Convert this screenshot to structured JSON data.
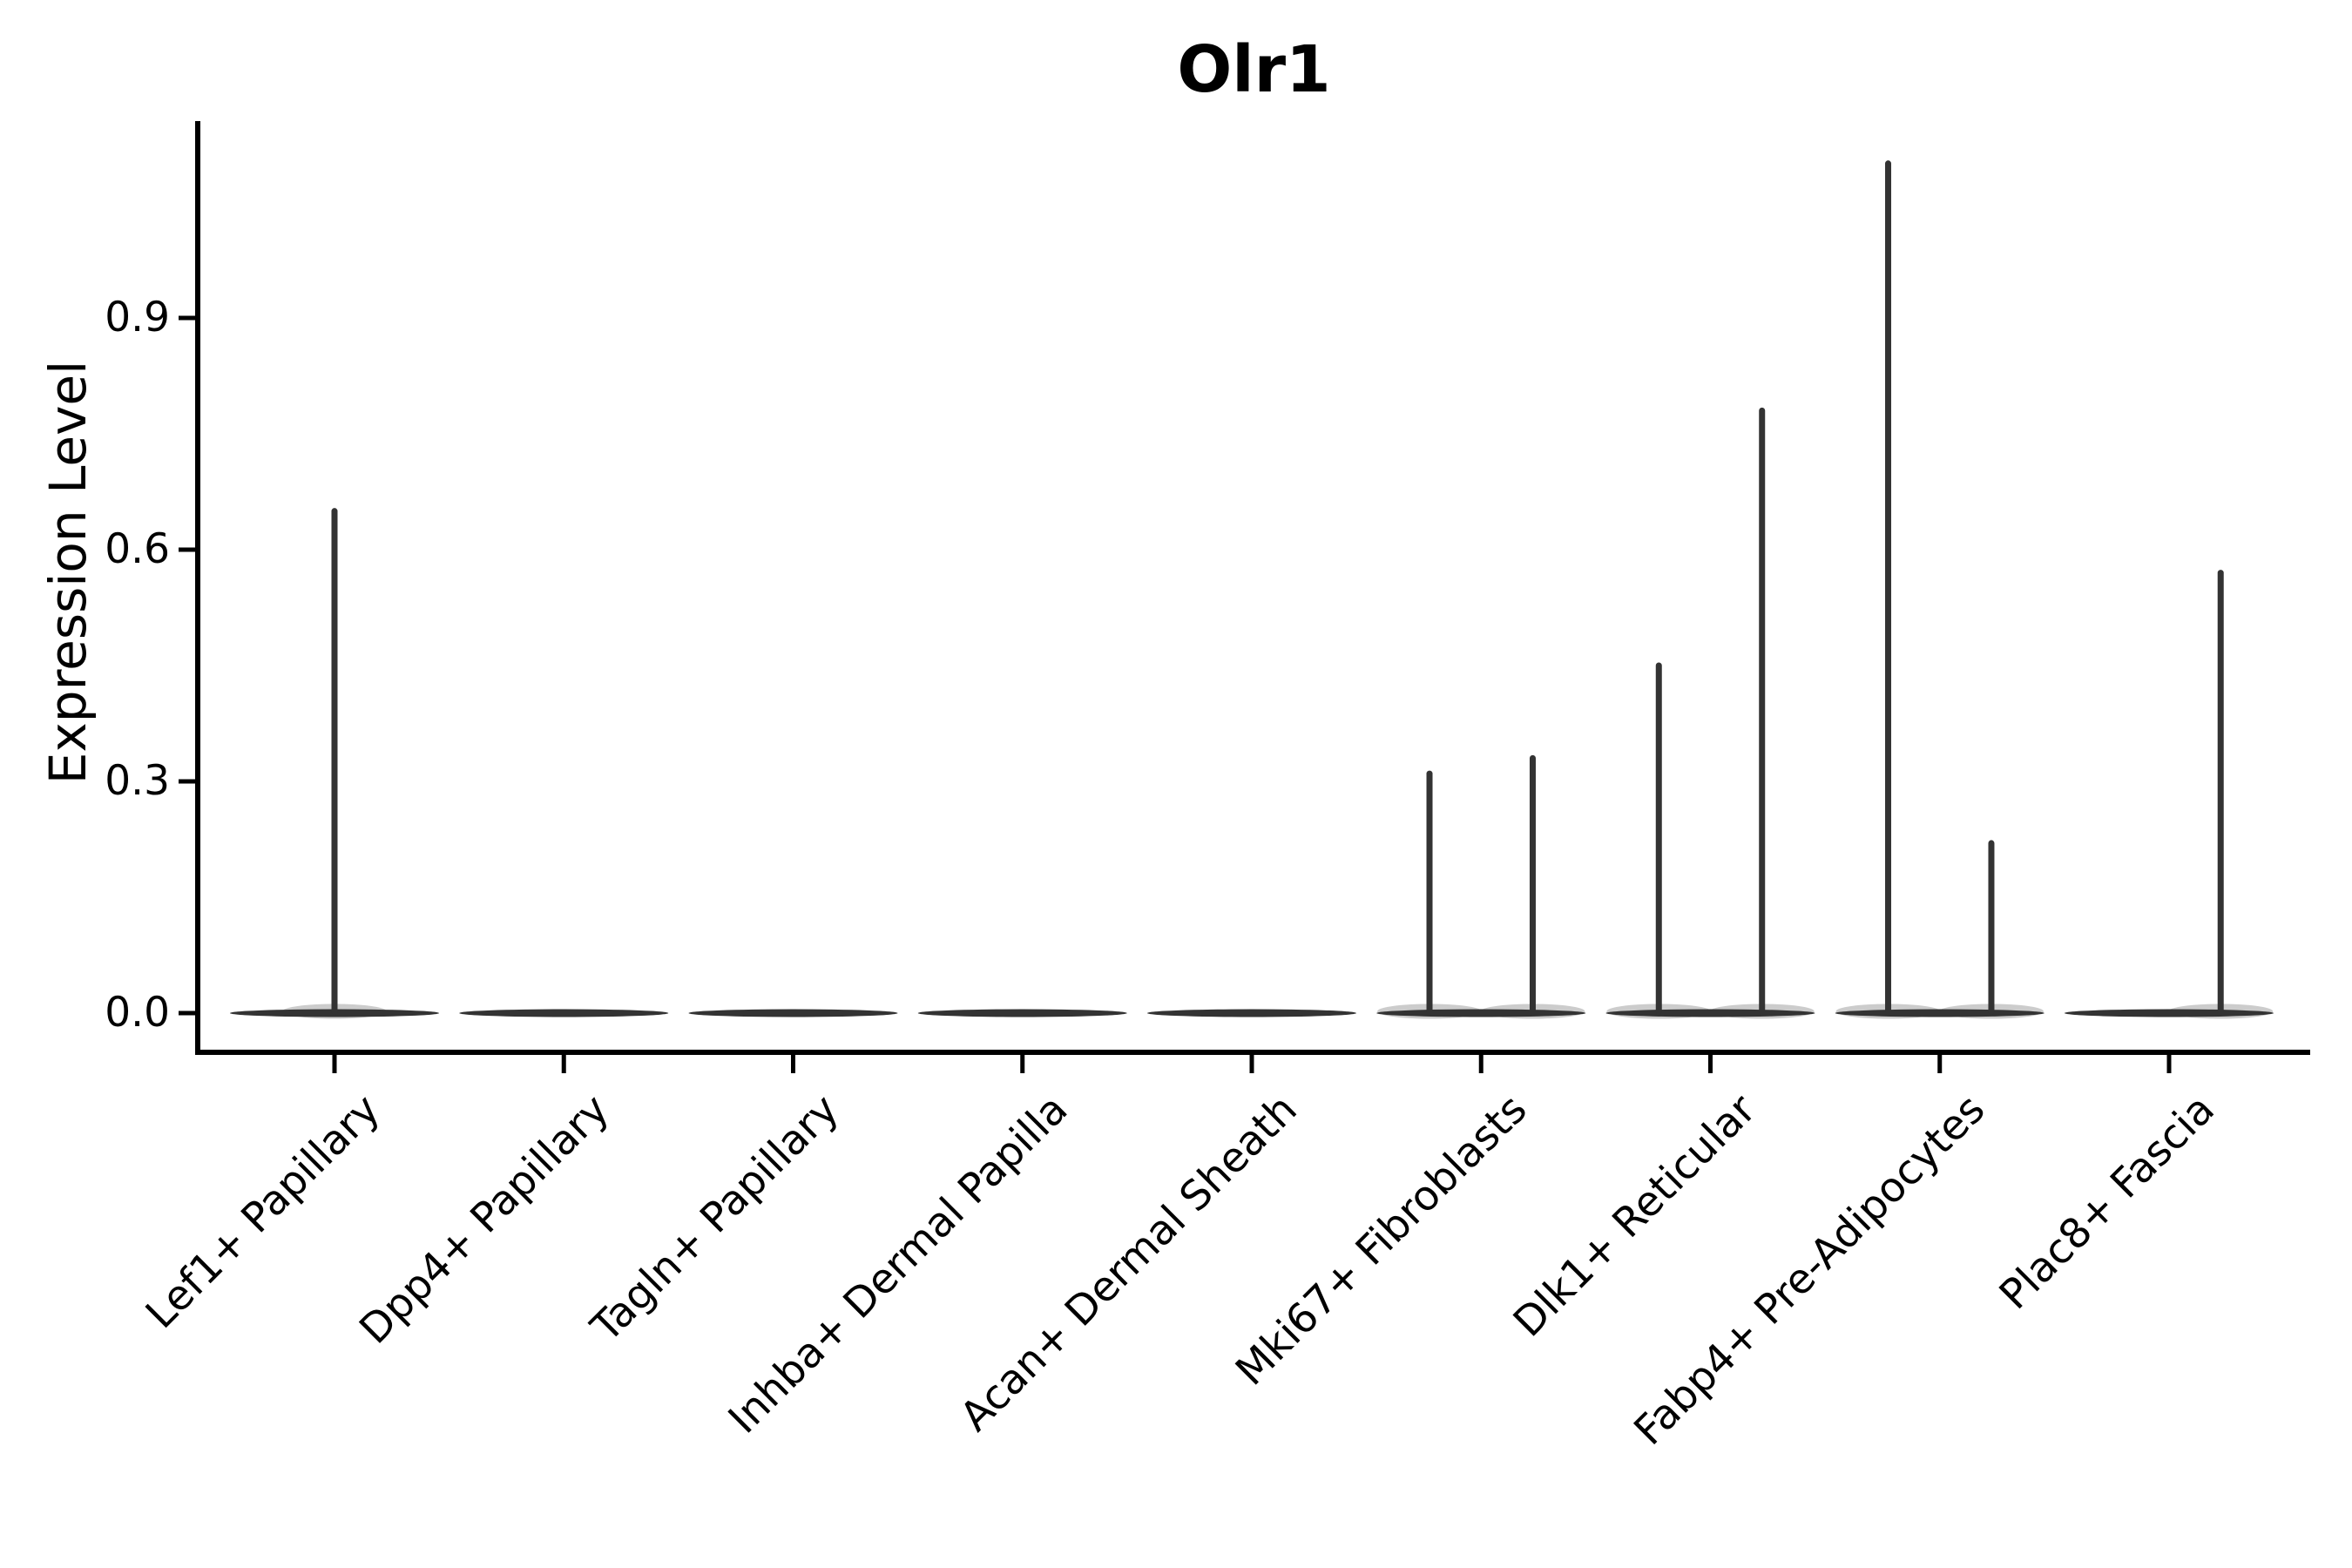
{
  "title": "Olr1",
  "ylabel": "Expression Level",
  "chart_data": {
    "type": "violin",
    "title": "Olr1",
    "xlabel": "",
    "ylabel": "Expression Level",
    "grid": false,
    "legend": false,
    "background": "#ffffff",
    "ylim": [
      -0.055,
      1.155
    ],
    "ytick_values": [
      0.0,
      0.3,
      0.6,
      0.9
    ],
    "ytick_labels": [
      "0.0",
      "0.3",
      "0.6",
      "0.9"
    ],
    "categories": [
      "Lef1+ Papillary",
      "Dpp4+ Papillary",
      "Tagln+ Papillary",
      "Inhba+ Dermal Papilla",
      "Acan+ Dermal Sheath",
      "Mki67+ Fibroblasts",
      "Dlk1+ Reticular",
      "Fabp4+ Pre-Adipocytes",
      "Plac8+ Fascia"
    ],
    "xtick_rotation_degrees": 45,
    "violins": [
      {
        "category": "Lef1+ Papillary",
        "base_value": 0.0,
        "spikes": [
          {
            "offset": 0.0,
            "value": 0.65
          }
        ]
      },
      {
        "category": "Dpp4+ Papillary",
        "base_value": 0.0,
        "spikes": []
      },
      {
        "category": "Tagln+ Papillary",
        "base_value": 0.0,
        "spikes": []
      },
      {
        "category": "Inhba+ Dermal Papilla",
        "base_value": 0.0,
        "spikes": []
      },
      {
        "category": "Acan+ Dermal Sheath",
        "base_value": 0.0,
        "spikes": []
      },
      {
        "category": "Mki67+ Fibroblasts",
        "base_value": 0.0,
        "spikes": [
          {
            "offset": -0.225,
            "value": 0.31
          },
          {
            "offset": 0.225,
            "value": 0.33
          }
        ]
      },
      {
        "category": "Dlk1+ Reticular",
        "base_value": 0.0,
        "spikes": [
          {
            "offset": -0.225,
            "value": 0.45
          },
          {
            "offset": 0.225,
            "value": 0.78
          }
        ]
      },
      {
        "category": "Fabp4+ Pre-Adipocytes",
        "base_value": 0.0,
        "spikes": [
          {
            "offset": -0.225,
            "value": 1.1
          },
          {
            "offset": 0.225,
            "value": 0.22
          }
        ]
      },
      {
        "category": "Plac8+ Fascia",
        "base_value": 0.0,
        "spikes": [
          {
            "offset": 0.225,
            "value": 0.57
          }
        ]
      }
    ],
    "colors": {
      "violin": "#333333",
      "axis": "#000000",
      "text": "#000000",
      "background": "#ffffff"
    }
  }
}
